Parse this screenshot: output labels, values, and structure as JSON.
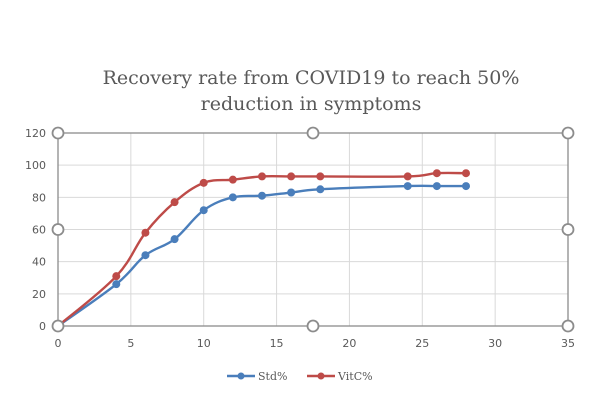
{
  "chart_data": {
    "type": "line",
    "title": "Recovery rate from COVID19 to reach 50% reduction in symptoms",
    "title_lines": [
      "Recovery rate from COVID19 to reach 50%",
      "reduction in symptoms"
    ],
    "xlabel": "",
    "ylabel": "",
    "xlim": [
      0,
      35
    ],
    "ylim": [
      0,
      120
    ],
    "xticks": [
      0,
      5,
      10,
      15,
      20,
      25,
      30,
      35
    ],
    "yticks": [
      0,
      20,
      40,
      60,
      80,
      100,
      120
    ],
    "grid": true,
    "legend_position": "bottom",
    "smooth": true,
    "plot_area_selected": true,
    "series": [
      {
        "name": "Std%",
        "color": "#4a7ebb",
        "x": [
          0,
          4,
          6,
          8,
          10,
          12,
          14,
          16,
          18,
          24,
          26,
          28
        ],
        "values": [
          0,
          26,
          44,
          54,
          72,
          80,
          81,
          83,
          85,
          87,
          87,
          87
        ]
      },
      {
        "name": "VitC%",
        "color": "#be4b48",
        "x": [
          0,
          4,
          6,
          8,
          10,
          12,
          14,
          16,
          18,
          24,
          26,
          28
        ],
        "values": [
          0,
          31,
          58,
          77,
          89,
          91,
          93,
          93,
          93,
          93,
          95,
          95
        ]
      }
    ]
  }
}
